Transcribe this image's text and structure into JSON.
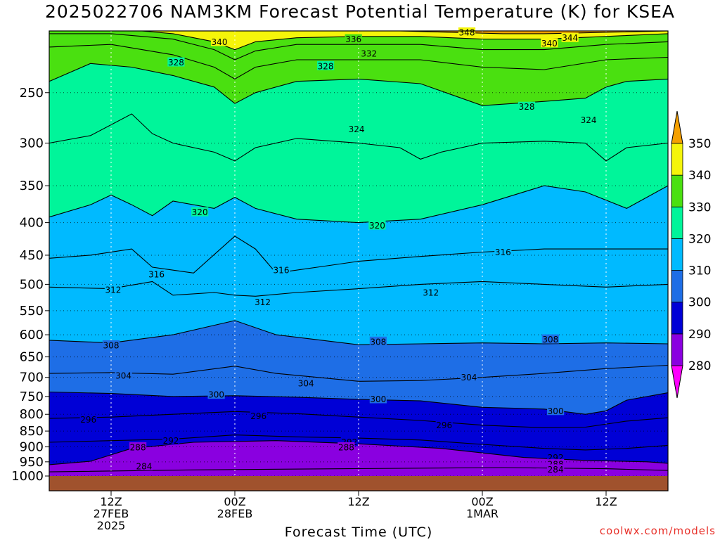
{
  "title": "2025022706 NAM3KM Forecast Potential Temperature (K) for KSEA",
  "credit": "coolwx.com/models",
  "chart_data": {
    "type": "heatmap",
    "title": "2025022706 NAM3KM Forecast Potential Temperature (K) for KSEA",
    "xlabel": "Forecast Time (UTC)",
    "ylabel": "",
    "y_axis": {
      "scale": "log",
      "reversed": true,
      "range": [
        200,
        1000
      ],
      "ticks": [
        250,
        300,
        350,
        400,
        450,
        500,
        550,
        600,
        650,
        700,
        750,
        800,
        850,
        900,
        950,
        1000
      ]
    },
    "x_axis": {
      "range_hours": [
        6,
        66
      ],
      "ticks": [
        {
          "hour": 12,
          "lines": [
            "12Z",
            "27FEB",
            "2025"
          ]
        },
        {
          "hour": 24,
          "lines": [
            "00Z",
            "28FEB"
          ]
        },
        {
          "hour": 36,
          "lines": [
            "12Z"
          ]
        },
        {
          "hour": 48,
          "lines": [
            "00Z",
            "1MAR"
          ]
        },
        {
          "hour": 60,
          "lines": [
            "12Z"
          ]
        }
      ]
    },
    "grid": true,
    "colorbar": {
      "placement": "right",
      "ticks": [
        280,
        290,
        300,
        310,
        320,
        330,
        340,
        350
      ],
      "bins": [
        {
          "from": 270,
          "to": 280,
          "color": "#ff00ff"
        },
        {
          "from": 280,
          "to": 290,
          "color": "#8a00e0"
        },
        {
          "from": 290,
          "to": 300,
          "color": "#0000d6"
        },
        {
          "from": 300,
          "to": 310,
          "color": "#1e6ee6"
        },
        {
          "from": 310,
          "to": 320,
          "color": "#00baff"
        },
        {
          "from": 320,
          "to": 330,
          "color": "#00f59a"
        },
        {
          "from": 330,
          "to": 340,
          "color": "#4ae010"
        },
        {
          "from": 340,
          "to": 350,
          "color": "#f5f50a"
        },
        {
          "from": 350,
          "to": 360,
          "color": "#f5a000"
        }
      ]
    },
    "terrain_color": "#a0522d",
    "contour_interval": 4,
    "contours": [
      {
        "theta": 284,
        "p": [
          [
            6,
            985
          ],
          [
            20,
            978
          ],
          [
            35,
            974
          ],
          [
            50,
            970
          ],
          [
            60,
            974
          ],
          [
            66,
            980
          ]
        ]
      },
      {
        "theta": 288,
        "p": [
          [
            6,
            960
          ],
          [
            10,
            948
          ],
          [
            14,
            905
          ],
          [
            20,
            885
          ],
          [
            28,
            880
          ],
          [
            36,
            890
          ],
          [
            44,
            905
          ],
          [
            52,
            935
          ],
          [
            58,
            945
          ],
          [
            64,
            950
          ],
          [
            66,
            955
          ]
        ]
      },
      {
        "theta": 292,
        "p": [
          [
            6,
            885
          ],
          [
            12,
            880
          ],
          [
            18,
            875
          ],
          [
            24,
            862
          ],
          [
            30,
            868
          ],
          [
            36,
            872
          ],
          [
            42,
            878
          ],
          [
            48,
            892
          ],
          [
            54,
            905
          ],
          [
            58,
            910
          ],
          [
            62,
            905
          ],
          [
            66,
            895
          ]
        ]
      },
      {
        "theta": 296,
        "p": [
          [
            6,
            812
          ],
          [
            12,
            808
          ],
          [
            18,
            800
          ],
          [
            24,
            792
          ],
          [
            30,
            798
          ],
          [
            36,
            808
          ],
          [
            42,
            818
          ],
          [
            48,
            832
          ],
          [
            54,
            840
          ],
          [
            58,
            838
          ],
          [
            62,
            820
          ],
          [
            66,
            810
          ]
        ]
      },
      {
        "theta": 300,
        "p": [
          [
            6,
            738
          ],
          [
            12,
            742
          ],
          [
            18,
            750
          ],
          [
            24,
            748
          ],
          [
            30,
            752
          ],
          [
            36,
            758
          ],
          [
            42,
            762
          ],
          [
            48,
            780
          ],
          [
            54,
            785
          ],
          [
            58,
            800
          ],
          [
            60,
            790
          ],
          [
            62,
            760
          ],
          [
            66,
            740
          ]
        ]
      },
      {
        "theta": 304,
        "p": [
          [
            6,
            690
          ],
          [
            12,
            688
          ],
          [
            18,
            692
          ],
          [
            24,
            672
          ],
          [
            28,
            690
          ],
          [
            36,
            710
          ],
          [
            42,
            708
          ],
          [
            48,
            700
          ],
          [
            54,
            690
          ],
          [
            60,
            678
          ],
          [
            66,
            670
          ]
        ]
      },
      {
        "theta": 308,
        "p": [
          [
            6,
            612
          ],
          [
            12,
            618
          ],
          [
            18,
            600
          ],
          [
            24,
            570
          ],
          [
            28,
            600
          ],
          [
            36,
            622
          ],
          [
            42,
            620
          ],
          [
            48,
            618
          ],
          [
            54,
            620
          ],
          [
            60,
            618
          ],
          [
            66,
            620
          ]
        ]
      },
      {
        "theta": 312,
        "p": [
          [
            6,
            505
          ],
          [
            12,
            508
          ],
          [
            16,
            495
          ],
          [
            18,
            520
          ],
          [
            22,
            515
          ],
          [
            24,
            520
          ],
          [
            26,
            522
          ],
          [
            30,
            515
          ],
          [
            36,
            508
          ],
          [
            42,
            500
          ],
          [
            48,
            495
          ],
          [
            54,
            500
          ],
          [
            60,
            505
          ],
          [
            66,
            500
          ]
        ]
      },
      {
        "theta": 316,
        "p": [
          [
            6,
            455
          ],
          [
            10,
            450
          ],
          [
            14,
            440
          ],
          [
            16,
            470
          ],
          [
            20,
            480
          ],
          [
            24,
            420
          ],
          [
            26,
            440
          ],
          [
            28,
            480
          ],
          [
            32,
            470
          ],
          [
            36,
            460
          ],
          [
            42,
            452
          ],
          [
            48,
            445
          ],
          [
            54,
            440
          ],
          [
            60,
            440
          ],
          [
            66,
            440
          ]
        ]
      },
      {
        "theta": 320,
        "p": [
          [
            6,
            392
          ],
          [
            10,
            375
          ],
          [
            12,
            362
          ],
          [
            14,
            375
          ],
          [
            16,
            390
          ],
          [
            18,
            370
          ],
          [
            22,
            380
          ],
          [
            24,
            365
          ],
          [
            26,
            380
          ],
          [
            30,
            395
          ],
          [
            36,
            400
          ],
          [
            42,
            395
          ],
          [
            48,
            375
          ],
          [
            54,
            350
          ],
          [
            58,
            358
          ],
          [
            62,
            380
          ],
          [
            66,
            350
          ]
        ]
      },
      {
        "theta": 324,
        "p": [
          [
            6,
            300
          ],
          [
            10,
            292
          ],
          [
            14,
            270
          ],
          [
            16,
            290
          ],
          [
            18,
            300
          ],
          [
            22,
            310
          ],
          [
            24,
            320
          ],
          [
            26,
            305
          ],
          [
            30,
            295
          ],
          [
            36,
            300
          ],
          [
            40,
            305
          ],
          [
            42,
            318
          ],
          [
            44,
            310
          ],
          [
            48,
            300
          ],
          [
            54,
            298
          ],
          [
            58,
            300
          ],
          [
            60,
            320
          ],
          [
            62,
            305
          ],
          [
            66,
            300
          ]
        ]
      },
      {
        "theta": 328,
        "p": [
          [
            6,
            240
          ],
          [
            10,
            225
          ],
          [
            14,
            228
          ],
          [
            18,
            235
          ],
          [
            22,
            245
          ],
          [
            24,
            260
          ],
          [
            26,
            250
          ],
          [
            30,
            240
          ],
          [
            36,
            238
          ],
          [
            42,
            242
          ],
          [
            48,
            262
          ],
          [
            54,
            258
          ],
          [
            58,
            255
          ],
          [
            60,
            245
          ],
          [
            62,
            240
          ],
          [
            66,
            238
          ]
        ]
      },
      {
        "theta": 332,
        "p": [
          [
            6,
            212
          ],
          [
            12,
            210
          ],
          [
            18,
            218
          ],
          [
            22,
            228
          ],
          [
            24,
            238
          ],
          [
            26,
            228
          ],
          [
            30,
            222
          ],
          [
            36,
            222
          ],
          [
            42,
            222
          ],
          [
            48,
            228
          ],
          [
            54,
            230
          ],
          [
            60,
            222
          ],
          [
            66,
            220
          ]
        ]
      },
      {
        "theta": 336,
        "p": [
          [
            6,
            202
          ],
          [
            12,
            202
          ],
          [
            18,
            206
          ],
          [
            22,
            214
          ],
          [
            24,
            222
          ],
          [
            26,
            215
          ],
          [
            30,
            210
          ],
          [
            36,
            210
          ],
          [
            42,
            210
          ],
          [
            48,
            214
          ],
          [
            54,
            214
          ],
          [
            60,
            210
          ],
          [
            66,
            208
          ]
        ]
      },
      {
        "theta": 340,
        "p": [
          [
            15,
            200
          ],
          [
            18,
            202
          ],
          [
            22,
            208
          ],
          [
            24,
            214
          ],
          [
            26,
            208
          ],
          [
            30,
            205
          ],
          [
            36,
            204
          ],
          [
            42,
            204
          ],
          [
            48,
            206
          ],
          [
            54,
            206
          ],
          [
            60,
            204
          ],
          [
            66,
            202
          ]
        ]
      },
      {
        "theta": 344,
        "p": [
          [
            40,
            200
          ],
          [
            45,
            201
          ],
          [
            50,
            202
          ],
          [
            54,
            202
          ],
          [
            60,
            201
          ],
          [
            66,
            200
          ]
        ]
      }
    ],
    "contour_labels": [
      {
        "text": "348",
        "hour": 46.5,
        "p": 201
      },
      {
        "text": "344",
        "hour": 56.5,
        "p": 205
      },
      {
        "text": "340",
        "hour": 22.5,
        "p": 208
      },
      {
        "text": "340",
        "hour": 54.5,
        "p": 209
      },
      {
        "text": "336",
        "hour": 35.5,
        "p": 206
      },
      {
        "text": "332",
        "hour": 37.0,
        "p": 217
      },
      {
        "text": "328",
        "hour": 18.3,
        "p": 224
      },
      {
        "text": "328",
        "hour": 32.8,
        "p": 227
      },
      {
        "text": "328",
        "hour": 52.3,
        "p": 263
      },
      {
        "text": "324",
        "hour": 35.8,
        "p": 285
      },
      {
        "text": "324",
        "hour": 58.3,
        "p": 276
      },
      {
        "text": "320",
        "hour": 20.6,
        "p": 385
      },
      {
        "text": "320",
        "hour": 37.8,
        "p": 404
      },
      {
        "text": "316",
        "hour": 16.4,
        "p": 482
      },
      {
        "text": "316",
        "hour": 28.5,
        "p": 475
      },
      {
        "text": "316",
        "hour": 50.0,
        "p": 445
      },
      {
        "text": "312",
        "hour": 12.2,
        "p": 510
      },
      {
        "text": "312",
        "hour": 26.7,
        "p": 533
      },
      {
        "text": "312",
        "hour": 43.0,
        "p": 515
      },
      {
        "text": "308",
        "hour": 12.0,
        "p": 623
      },
      {
        "text": "308",
        "hour": 37.9,
        "p": 615
      },
      {
        "text": "308",
        "hour": 54.6,
        "p": 610
      },
      {
        "text": "304",
        "hour": 13.2,
        "p": 695
      },
      {
        "text": "304",
        "hour": 30.9,
        "p": 715
      },
      {
        "text": "304",
        "hour": 46.7,
        "p": 700
      },
      {
        "text": "300",
        "hour": 22.2,
        "p": 745
      },
      {
        "text": "300",
        "hour": 37.9,
        "p": 757
      },
      {
        "text": "300",
        "hour": 55.1,
        "p": 790
      },
      {
        "text": "296",
        "hour": 9.8,
        "p": 815
      },
      {
        "text": "296",
        "hour": 26.3,
        "p": 805
      },
      {
        "text": "296",
        "hour": 44.3,
        "p": 832
      },
      {
        "text": "292",
        "hour": 17.8,
        "p": 879
      },
      {
        "text": "292",
        "hour": 35.1,
        "p": 884
      },
      {
        "text": "292",
        "hour": 55.1,
        "p": 935
      },
      {
        "text": "288",
        "hour": 14.6,
        "p": 901
      },
      {
        "text": "288",
        "hour": 34.8,
        "p": 901
      },
      {
        "text": "288",
        "hour": 55.1,
        "p": 958
      },
      {
        "text": "284",
        "hour": 15.2,
        "p": 965
      },
      {
        "text": "284",
        "hour": 55.1,
        "p": 976
      }
    ]
  }
}
